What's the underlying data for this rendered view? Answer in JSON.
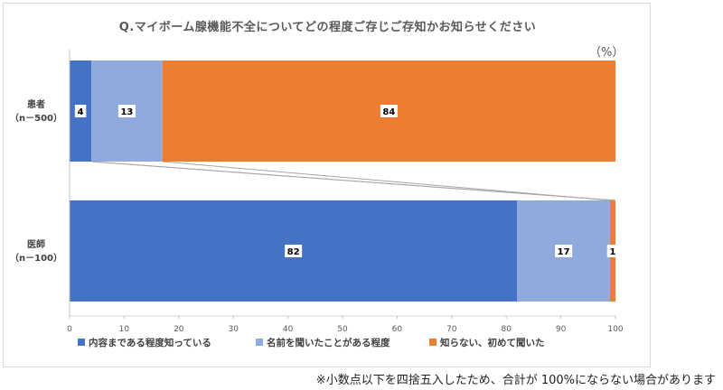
{
  "chart_data": {
    "type": "bar",
    "orientation": "horizontal",
    "stacked": true,
    "title": "Q.マイボーム腺機能不全についてどの程度ご存じご存知かお知らせください",
    "unit": "（%）",
    "categories": [
      {
        "name": "患者",
        "sample": "（n－500）"
      },
      {
        "name": "医師",
        "sample": "（n－100）"
      }
    ],
    "series": [
      {
        "name": "内容まである程度知っている",
        "color": "#4472c4",
        "values": [
          4,
          82
        ]
      },
      {
        "name": "名前を聞いたことがある程度",
        "color": "#8faadc",
        "values": [
          13,
          17
        ]
      },
      {
        "name": "知らない、初めて聞いた",
        "color": "#ed7d31",
        "values": [
          84,
          1
        ]
      }
    ],
    "xlim": [
      0,
      100
    ],
    "xticks": [
      0,
      10,
      20,
      30,
      40,
      50,
      60,
      70,
      80,
      90,
      100
    ],
    "legend_position": "bottom",
    "grid": false
  },
  "footnote": "※小数点以下を四捨五入したため、合計が 100%にならない場合があります"
}
